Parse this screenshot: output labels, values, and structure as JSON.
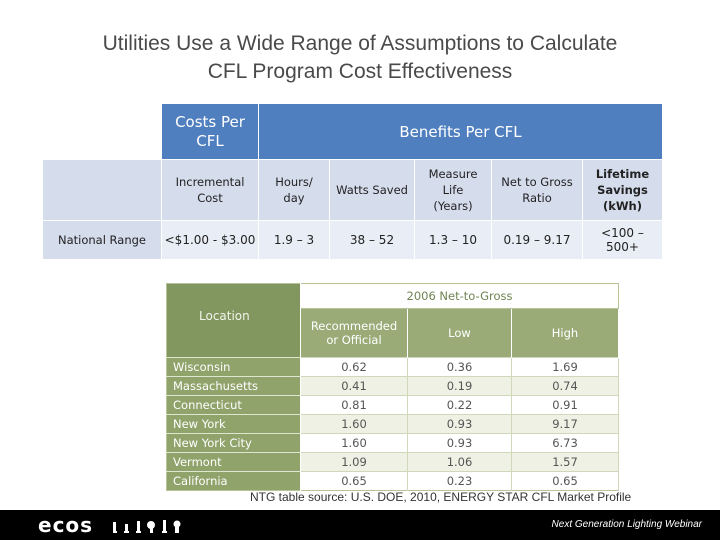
{
  "title": {
    "line1": "Utilities Use a Wide Range of Assumptions to Calculate",
    "line2": "CFL Program Cost Effectiveness"
  },
  "table1": {
    "costs_header_line1": "Costs Per",
    "costs_header_line2": "CFL",
    "benefits_header": "Benefits Per CFL",
    "subheaders": [
      [
        "Incremental",
        "Cost"
      ],
      [
        "Hours/",
        "day"
      ],
      [
        "Watts Saved"
      ],
      [
        "Measure",
        "Life",
        "(Years)"
      ],
      [
        "Net to Gross",
        "Ratio"
      ],
      [
        "Lifetime",
        "Savings",
        "(kWh)"
      ]
    ],
    "row_label": "National Range",
    "row_values": [
      "<$1.00 - $3.00",
      "1.9 – 3",
      "38 – 52",
      "1.3 – 10",
      "0.19 – 9.17",
      "<100 – 500+"
    ]
  },
  "ntg_table": {
    "location_header": "Location",
    "group_header": "2006 Net-to-Gross",
    "col_recommended_line1": "Recommended",
    "col_recommended_line2": "or Official",
    "col_low": "Low",
    "col_high": "High",
    "rows": [
      {
        "location": "Wisconsin",
        "recommended": "0.62",
        "low": "0.36",
        "high": "1.69"
      },
      {
        "location": "Massachusetts",
        "recommended": "0.41",
        "low": "0.19",
        "high": "0.74"
      },
      {
        "location": "Connecticut",
        "recommended": "0.81",
        "low": "0.22",
        "high": "0.91"
      },
      {
        "location": "New York",
        "recommended": "1.60",
        "low": "0.93",
        "high": "9.17"
      },
      {
        "location": "New York City",
        "recommended": "1.60",
        "low": "0.93",
        "high": "6.73"
      },
      {
        "location": "Vermont",
        "recommended": "1.09",
        "low": "1.06",
        "high": "1.57"
      },
      {
        "location": "California",
        "recommended": "0.65",
        "low": "0.23",
        "high": "0.65"
      }
    ]
  },
  "source_note": "NTG table source: U.S. DOE, 2010, ENERGY STAR CFL Market Profile",
  "footer": {
    "logo_text": "ecos",
    "tagline": "Next Generation Lighting Webinar",
    "logo_icons": [
      "lightbulb-icon",
      "lightbulb-icon",
      "lightbulb-icon",
      "lightbulb-icon",
      "lightbulb-icon",
      "lightbulb-icon"
    ]
  },
  "colors": {
    "header_blue": "#4f7fbf",
    "subheader_blue": "#d5dcec",
    "ntg_green": "#90a36b",
    "footer_black": "#000000"
  }
}
